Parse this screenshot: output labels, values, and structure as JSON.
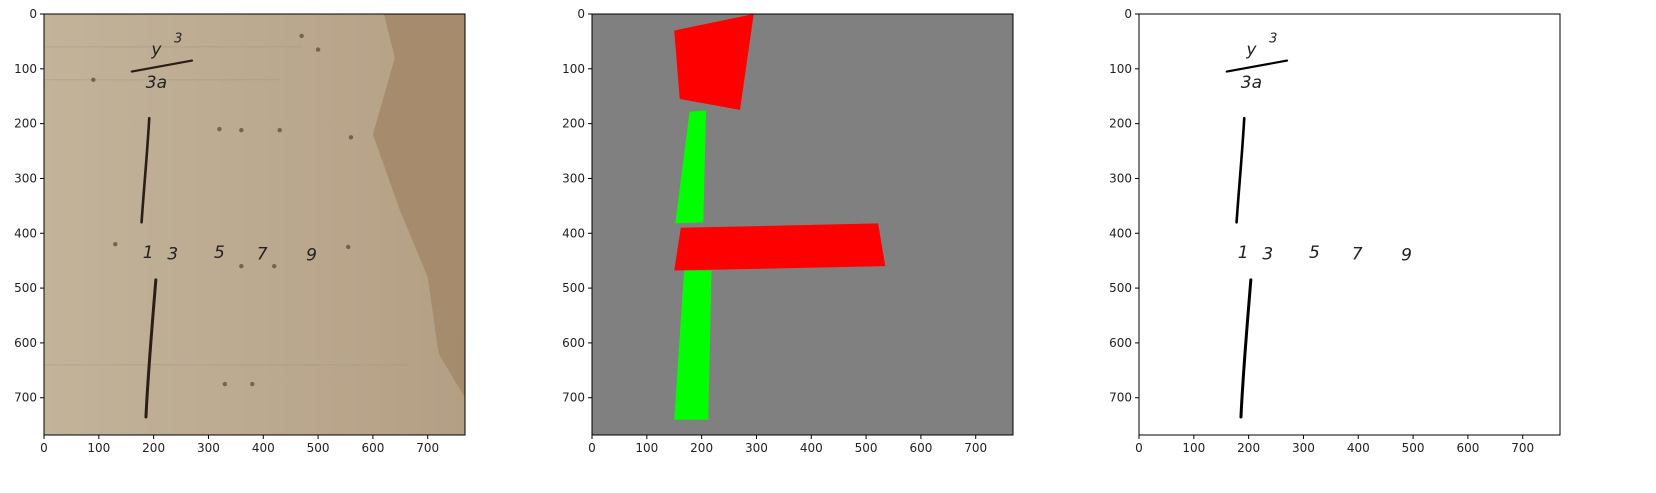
{
  "figure": {
    "panels": [
      {
        "name": "manuscript-scan",
        "kind": "scan",
        "image_size": [
          768,
          768
        ],
        "ink_glyphs": [
          {
            "text": "y",
            "pos": [
              205,
              75
            ]
          },
          {
            "text": "3",
            "pos": [
              245,
              52
            ]
          },
          {
            "text": "3a",
            "pos": [
              205,
              135
            ]
          },
          {
            "text": "1",
            "pos": [
              190,
              445
            ]
          },
          {
            "text": "3",
            "pos": [
              235,
              448
            ]
          },
          {
            "text": "5",
            "pos": [
              320,
              445
            ]
          },
          {
            "text": "7",
            "pos": [
              398,
              448
            ]
          },
          {
            "text": "9",
            "pos": [
              488,
              450
            ]
          }
        ]
      },
      {
        "name": "segmentation-mask",
        "kind": "mask",
        "image_size": [
          768,
          768
        ],
        "background_color": "#808080",
        "regions": [
          {
            "color": "#ff0000",
            "points": [
              [
                150,
                30
              ],
              [
                295,
                0
              ],
              [
                270,
                175
              ],
              [
                160,
                155
              ]
            ]
          },
          {
            "color": "#00ff00",
            "points": [
              [
                178,
                178
              ],
              [
                208,
                176
              ],
              [
                203,
                380
              ],
              [
                152,
                382
              ]
            ]
          },
          {
            "color": "#ff0000",
            "points": [
              [
                162,
                390
              ],
              [
                522,
                382
              ],
              [
                535,
                460
              ],
              [
                150,
                468
              ]
            ]
          },
          {
            "color": "#00ff00",
            "points": [
              [
                168,
                468
              ],
              [
                218,
                468
              ],
              [
                212,
                740
              ],
              [
                150,
                740
              ]
            ]
          }
        ]
      },
      {
        "name": "binarized-ink",
        "kind": "binary",
        "image_size": [
          768,
          768
        ],
        "ink_glyphs": [
          {
            "text": "y",
            "pos": [
              205,
              75
            ]
          },
          {
            "text": "3",
            "pos": [
              245,
              52
            ]
          },
          {
            "text": "3a",
            "pos": [
              205,
              135
            ]
          },
          {
            "text": "1",
            "pos": [
              190,
              445
            ]
          },
          {
            "text": "3",
            "pos": [
              235,
              448
            ]
          },
          {
            "text": "5",
            "pos": [
              320,
              445
            ]
          },
          {
            "text": "7",
            "pos": [
              398,
              448
            ]
          },
          {
            "text": "9",
            "pos": [
              488,
              450
            ]
          }
        ]
      }
    ],
    "axes": {
      "x_ticks": [
        0,
        100,
        200,
        300,
        400,
        500,
        600,
        700
      ],
      "y_ticks": [
        0,
        100,
        200,
        300,
        400,
        500,
        600,
        700
      ]
    }
  }
}
